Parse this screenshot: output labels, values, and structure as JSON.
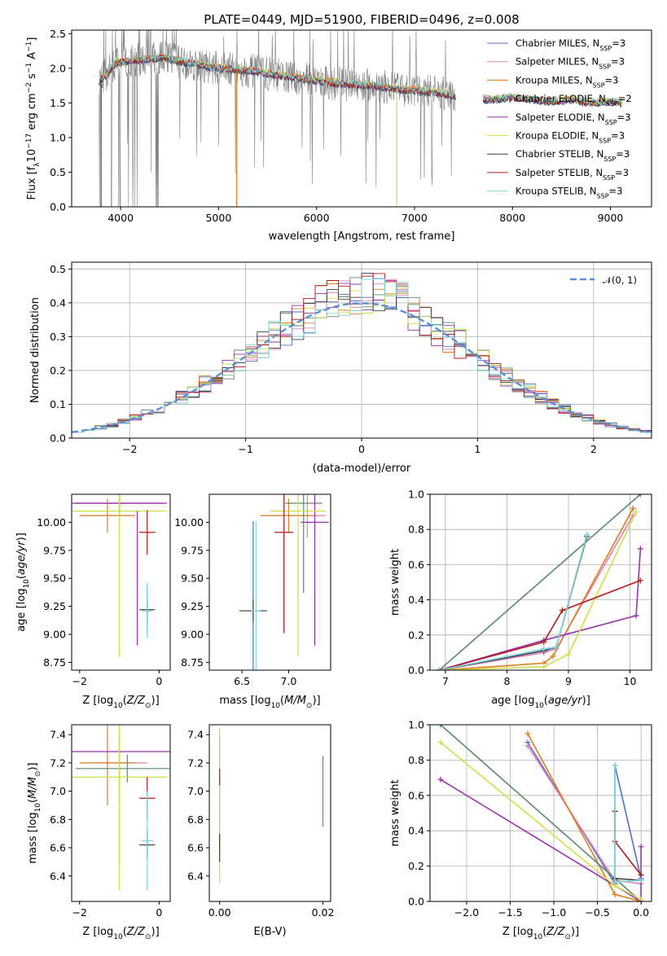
{
  "title": "PLATE=0449, MJD=51900, FIBERID=0496, z=0.008",
  "colors": {
    "Chabrier MILES": "#5470c6",
    "Salpeter MILES": "#e27fc0",
    "Kroupa MILES": "#e07b1a",
    "Chabrier ELODIE": "#5b8a6b",
    "Salpeter ELODIE": "#9c2fb0",
    "Kroupa ELODIE": "#cfe04a",
    "Chabrier STELIB": "#3f3f3f",
    "Salpeter STELIB": "#b31b1b",
    "Kroupa STELIB": "#7fd9dc",
    "data": "#808080",
    "normal": "#5b8fd6"
  },
  "chart_data": [
    {
      "id": "spectrum",
      "type": "line",
      "title": "PLATE=0449, MJD=51900, FIBERID=0496, z=0.008",
      "xlabel": "wavelength [Angstrom, rest frame]",
      "ylabel": "Flux [f",
      "xlim": [
        3500,
        9420
      ],
      "ylim": [
        0,
        2.55
      ],
      "xticks": [
        4000,
        5000,
        6000,
        7000,
        8000,
        9000
      ],
      "yticks": [
        0.0,
        0.5,
        1.0,
        1.5,
        2.0,
        2.5
      ],
      "legend": [
        "Chabrier MILES, N",
        "Salpeter MILES, N",
        "Kroupa MILES, N",
        "Chabrier ELODIE, N",
        "Salpeter ELODIE, N",
        "Kroupa ELODIE, N",
        "Chabrier STELIB, N",
        "Salpeter STELIB, N",
        "Kroupa STELIB, N"
      ],
      "legend_nssp": [
        "3",
        "3",
        "3",
        "2",
        "3",
        "3",
        "3",
        "3",
        "3"
      ],
      "legend_position": "upper-right",
      "model_continuum": {
        "x": [
          3780,
          3850,
          3950,
          4050,
          4200,
          4300,
          4450,
          4600,
          4800,
          5000,
          5200,
          5400,
          5600,
          5800,
          6000,
          6200,
          6400,
          6600,
          6800,
          7000,
          7200,
          7400,
          7600,
          7800,
          8000,
          8200,
          8400,
          8600,
          8800,
          9000,
          9100
        ],
        "y": [
          1.82,
          1.9,
          2.08,
          2.1,
          2.12,
          2.14,
          2.16,
          2.1,
          2.05,
          2.0,
          1.98,
          1.95,
          1.9,
          1.86,
          1.82,
          1.78,
          1.76,
          1.75,
          1.7,
          1.68,
          1.65,
          1.6,
          1.56,
          1.55,
          1.58,
          1.55,
          1.52,
          1.55,
          1.5,
          1.52,
          1.5
        ]
      }
    },
    {
      "id": "residuals",
      "type": "histogram",
      "xlabel": "(data-model)/error",
      "ylabel": "Normed distribution",
      "xlim": [
        -2.5,
        2.5
      ],
      "ylim": [
        0,
        0.52
      ],
      "xticks": [
        -2,
        -1,
        0,
        1,
        2
      ],
      "yticks": [
        0.0,
        0.1,
        0.2,
        0.3,
        0.4,
        0.5
      ],
      "legend": [
        "N(0,1)"
      ],
      "legend_position": "upper-right"
    },
    {
      "id": "age-vs-Z",
      "type": "scatter",
      "xlabel": "Z [log",
      "ylabel": "age  [log",
      "xlim": [
        -2.2,
        0.28
      ],
      "ylim": [
        8.68,
        10.25
      ],
      "xticks": [
        -2,
        0
      ],
      "yticks": [
        8.75,
        9.0,
        9.25,
        9.5,
        9.75,
        10.0
      ],
      "points": [
        {
          "model": "Chabrier MILES",
          "x": -0.3,
          "y": 9.21,
          "xerr": 0.1,
          "yerr": 0.2
        },
        {
          "model": "Salpeter MILES",
          "x": -1.0,
          "y": 10.17,
          "xerr": 1.1,
          "yerr": 0.1
        },
        {
          "model": "Kroupa MILES",
          "x": -1.3,
          "y": 10.06,
          "xerr": 0.7,
          "yerr": 0.15
        },
        {
          "model": "Chabrier ELODIE",
          "x": -1.0,
          "y": 10.17,
          "xerr": 1.1,
          "yerr": 0.15
        },
        {
          "model": "Salpeter ELODIE",
          "x": -1.0,
          "y": 10.17,
          "xerr": 1.2,
          "yerr": 0.08
        },
        {
          "model": "Kroupa ELODIE",
          "x": -1.0,
          "y": 10.1,
          "xerr": 1.2,
          "yerr": 1.3
        },
        {
          "model": "Chabrier STELIB",
          "x": -0.3,
          "y": 9.22,
          "xerr": 0.2,
          "yerr": 0.1
        },
        {
          "model": "Salpeter STELIB",
          "x": -0.3,
          "y": 9.91,
          "xerr": 0.2,
          "yerr": 0.2
        },
        {
          "model": "Kroupa STELIB",
          "x": -0.3,
          "y": 9.21,
          "xerr": 0.15,
          "yerr": 0.25
        },
        {
          "model": "Salpeter ELODIE",
          "x": -0.55,
          "y": 9.5,
          "xerr": 0.0,
          "yerr": 0.6
        }
      ]
    },
    {
      "id": "age-vs-mass",
      "type": "scatter",
      "xlabel": "mass [log",
      "ylabel": "",
      "xlim": [
        6.15,
        7.45
      ],
      "ylim": [
        8.68,
        10.25
      ],
      "xticks": [
        6.5,
        7.0
      ],
      "yticks": [
        8.75,
        9.0,
        9.25,
        9.5,
        9.75,
        10.0
      ],
      "points": [
        {
          "model": "Chabrier MILES",
          "x": 6.62,
          "y": 9.21,
          "xerr": 0.1,
          "yerr": 0.8
        },
        {
          "model": "Salpeter MILES",
          "x": 7.2,
          "y": 10.06,
          "xerr": 0.2,
          "yerr": 0.2
        },
        {
          "model": "Kroupa MILES",
          "x": 7.0,
          "y": 10.06,
          "xerr": 0.3,
          "yerr": 0.15
        },
        {
          "model": "Chabrier ELODIE",
          "x": 7.16,
          "y": 10.17,
          "xerr": 0.2,
          "yerr": 0.8
        },
        {
          "model": "Salpeter ELODIE",
          "x": 7.28,
          "y": 10.0,
          "xerr": 0.15,
          "yerr": 1.1
        },
        {
          "model": "Kroupa ELODIE",
          "x": 7.1,
          "y": 10.1,
          "xerr": 0.3,
          "yerr": 1.3
        },
        {
          "model": "Chabrier STELIB",
          "x": 6.62,
          "y": 9.21,
          "xerr": 0.15,
          "yerr": 0.1
        },
        {
          "model": "Salpeter STELIB",
          "x": 6.95,
          "y": 9.91,
          "xerr": 0.1,
          "yerr": 0.9
        },
        {
          "model": "Kroupa STELIB",
          "x": 6.65,
          "y": 9.21,
          "xerr": 0.05,
          "yerr": 0.8
        }
      ]
    },
    {
      "id": "mass-weight-vs-age",
      "type": "line",
      "xlabel": "age  [log",
      "ylabel": "mass weight",
      "xlim": [
        6.75,
        10.35
      ],
      "ylim": [
        0,
        1.0
      ],
      "xticks": [
        7,
        8,
        9,
        10
      ],
      "yticks": [
        0.0,
        0.2,
        0.4,
        0.6,
        0.8,
        1.0
      ],
      "series": [
        {
          "model": "Chabrier MILES",
          "x": [
            6.9,
            8.6,
            8.8,
            9.3
          ],
          "y": [
            0.0,
            0.12,
            0.13,
            0.77
          ]
        },
        {
          "model": "Salpeter MILES",
          "x": [
            6.9,
            8.6,
            8.8,
            10.05
          ],
          "y": [
            0.0,
            0.1,
            0.12,
            0.88
          ]
        },
        {
          "model": "Kroupa MILES",
          "x": [
            6.9,
            8.6,
            8.75,
            10.05
          ],
          "y": [
            0.0,
            0.04,
            0.08,
            0.92
          ]
        },
        {
          "model": "Chabrier ELODIE",
          "x": [
            6.9,
            10.17
          ],
          "y": [
            0.0,
            1.0
          ]
        },
        {
          "model": "Salpeter ELODIE",
          "x": [
            6.9,
            8.6,
            10.1,
            10.17
          ],
          "y": [
            0.0,
            0.17,
            0.31,
            0.69
          ]
        },
        {
          "model": "Kroupa ELODIE",
          "x": [
            6.9,
            8.6,
            9.0,
            10.1
          ],
          "y": [
            0.0,
            0.02,
            0.09,
            0.9
          ]
        },
        {
          "model": "Chabrier STELIB",
          "x": [
            6.9,
            8.6,
            8.8,
            9.3
          ],
          "y": [
            0.0,
            0.11,
            0.13,
            0.76
          ]
        },
        {
          "model": "Salpeter STELIB",
          "x": [
            6.9,
            8.6,
            8.9,
            10.17
          ],
          "y": [
            0.0,
            0.16,
            0.34,
            0.51
          ]
        },
        {
          "model": "Kroupa STELIB",
          "x": [
            6.9,
            8.6,
            8.8,
            9.3
          ],
          "y": [
            0.0,
            0.12,
            0.13,
            0.77
          ]
        }
      ]
    },
    {
      "id": "mass-vs-Z",
      "type": "scatter",
      "xlabel": "Z [log",
      "ylabel": "mass [log",
      "xlim": [
        -2.2,
        0.28
      ],
      "ylim": [
        6.22,
        7.47
      ],
      "xticks": [
        -2,
        0
      ],
      "yticks": [
        6.4,
        6.6,
        6.8,
        7.0,
        7.2,
        7.4
      ],
      "points": [
        {
          "model": "Chabrier MILES",
          "x": -0.3,
          "y": 6.62,
          "xerr": 0.1,
          "yerr": 0.1
        },
        {
          "model": "Salpeter MILES",
          "x": -1.0,
          "y": 7.2,
          "xerr": 0.7,
          "yerr": 0.2
        },
        {
          "model": "Kroupa MILES",
          "x": -1.3,
          "y": 7.2,
          "xerr": 0.7,
          "yerr": 0.3
        },
        {
          "model": "Chabrier ELODIE",
          "x": -0.8,
          "y": 7.16,
          "xerr": 1.3,
          "yerr": 0.1
        },
        {
          "model": "Salpeter ELODIE",
          "x": -1.0,
          "y": 7.28,
          "xerr": 1.3,
          "yerr": 0.8
        },
        {
          "model": "Kroupa ELODIE",
          "x": -1.0,
          "y": 7.1,
          "xerr": 1.2,
          "yerr": 0.8
        },
        {
          "model": "Chabrier STELIB",
          "x": -0.3,
          "y": 6.62,
          "xerr": 0.2,
          "yerr": 0.1
        },
        {
          "model": "Salpeter STELIB",
          "x": -0.3,
          "y": 6.95,
          "xerr": 0.2,
          "yerr": 0.15
        },
        {
          "model": "Kroupa STELIB",
          "x": -0.3,
          "y": 6.65,
          "xerr": 0.15,
          "yerr": 0.35
        }
      ]
    },
    {
      "id": "mass-vs-EBV",
      "type": "scatter",
      "xlabel": "E(B-V)",
      "ylabel": "",
      "xlim": [
        -0.002,
        0.0215
      ],
      "ylim": [
        6.22,
        7.47
      ],
      "xticks": [
        0.0,
        0.02
      ],
      "yticks": [
        6.4,
        6.6,
        6.8,
        7.0,
        7.2,
        7.4
      ],
      "points": [
        {
          "model": "Salpeter MILES",
          "x": 0.0,
          "y": 7.0,
          "yerr": 0.4
        },
        {
          "model": "Kroupa ELODIE",
          "x": 0.0,
          "y": 6.9,
          "yerr": 0.55
        },
        {
          "model": "Salpeter STELIB",
          "x": 0.0,
          "y": 7.1,
          "yerr": 0.06
        },
        {
          "model": "Chabrier STELIB",
          "x": 0.0,
          "y": 6.6,
          "yerr": 0.1
        },
        {
          "model": "Chabrier ELODIE",
          "x": 0.02,
          "y": 7.0,
          "yerr": 0.25
        }
      ]
    },
    {
      "id": "mass-weight-vs-Z",
      "type": "line",
      "xlabel": "Z [log",
      "ylabel": "mass weight",
      "xlim": [
        -2.42,
        0.12
      ],
      "ylim": [
        0,
        1.0
      ],
      "xticks": [
        -2.0,
        -1.5,
        -1.0,
        -0.5,
        0.0
      ],
      "yticks": [
        0.0,
        0.2,
        0.4,
        0.6,
        0.8,
        1.0
      ],
      "series": [
        {
          "model": "Chabrier MILES",
          "x": [
            -1.3,
            -0.3,
            -0.3,
            0.0
          ],
          "y": [
            0.9,
            0.1,
            0.77,
            0.13
          ]
        },
        {
          "model": "Salpeter MILES",
          "x": [
            -1.3,
            -0.3,
            0.0
          ],
          "y": [
            0.88,
            0.12,
            0.1
          ]
        },
        {
          "model": "Kroupa MILES",
          "x": [
            -1.3,
            -0.3,
            0.0
          ],
          "y": [
            0.95,
            0.04,
            0.0
          ]
        },
        {
          "model": "Chabrier ELODIE",
          "x": [
            -2.3,
            0.0
          ],
          "y": [
            1.0,
            0.0
          ]
        },
        {
          "model": "Salpeter ELODIE",
          "x": [
            -2.3,
            0.0,
            0.0
          ],
          "y": [
            0.69,
            0.0,
            0.31
          ]
        },
        {
          "model": "Kroupa ELODIE",
          "x": [
            -2.3,
            -0.3,
            0.0
          ],
          "y": [
            0.9,
            0.09,
            0.01
          ]
        },
        {
          "model": "Chabrier STELIB",
          "x": [
            -0.3,
            0.0
          ],
          "y": [
            0.13,
            0.12
          ]
        },
        {
          "model": "Salpeter STELIB",
          "x": [
            -0.3,
            -0.3,
            0.0
          ],
          "y": [
            0.51,
            0.34,
            0.15
          ]
        },
        {
          "model": "Kroupa STELIB",
          "x": [
            -0.3,
            -0.3,
            0.0
          ],
          "y": [
            0.77,
            0.11,
            0.12
          ]
        }
      ]
    }
  ]
}
